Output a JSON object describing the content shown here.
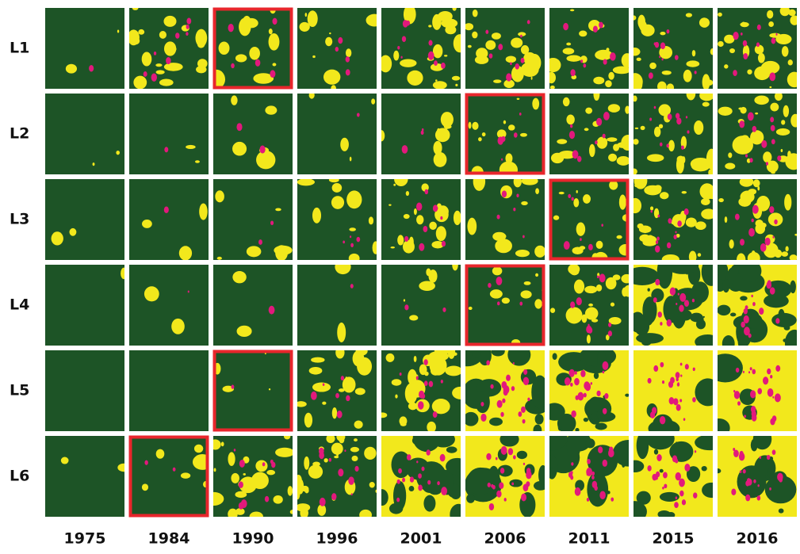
{
  "rows": [
    "L1",
    "L2",
    "L3",
    "L4",
    "L5",
    "L6"
  ],
  "columns": [
    "1975",
    "1984",
    "1990",
    "1996",
    "2001",
    "2006",
    "2011",
    "2015",
    "2016"
  ]
}
